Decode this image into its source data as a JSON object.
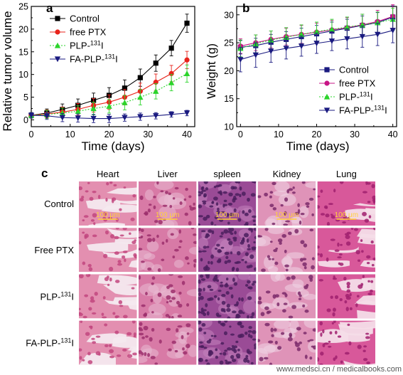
{
  "figure": {
    "watermark": "www.medsci.cn / medicalbooks.com"
  },
  "chart_data": [
    {
      "panel": "a",
      "type": "line",
      "xlabel": "Time (days)",
      "ylabel": "Relative tumor volume",
      "xlim": [
        0,
        42
      ],
      "ylim": [
        -1.5,
        25
      ],
      "xticks": [
        0,
        10,
        20,
        30,
        40
      ],
      "yticks": [
        0,
        5,
        10,
        15,
        20,
        25
      ],
      "legend_position": "top-left",
      "x": [
        0,
        4,
        8,
        12,
        16,
        20,
        24,
        28,
        32,
        36,
        40
      ],
      "series": [
        {
          "name": "Control",
          "color": "#000000",
          "marker": "square",
          "values": [
            1,
            1.5,
            2.3,
            3.2,
            4.3,
            5.4,
            7,
            9.3,
            12.5,
            15.8,
            21.3
          ],
          "errors": [
            0.6,
            0.9,
            1.2,
            1.4,
            1.6,
            1.7,
            1.8,
            1.9,
            1.8,
            1.7,
            2.0
          ]
        },
        {
          "name": "free PTX",
          "color": "#e8231b",
          "marker": "circle",
          "values": [
            1,
            1.3,
            1.7,
            2.3,
            3.2,
            3.9,
            5,
            6.3,
            8.3,
            10.2,
            13.2
          ],
          "errors": [
            0.6,
            0.9,
            1.1,
            1.3,
            1.5,
            1.6,
            1.7,
            1.8,
            1.8,
            1.8,
            1.9
          ]
        },
        {
          "name": "PLP-",
          "name_sup": "131",
          "name_suffix": "I",
          "color": "#2bd42b",
          "marker": "triangle-up",
          "values": [
            1,
            1.2,
            1.5,
            1.9,
            2.5,
            3.0,
            3.8,
            5.0,
            6.3,
            8.2,
            10.2
          ],
          "errors": [
            0.6,
            0.9,
            1.1,
            1.2,
            1.4,
            1.5,
            1.6,
            1.7,
            1.7,
            1.8,
            1.9
          ]
        },
        {
          "name": "FA-PLP-",
          "name_sup": "131",
          "name_suffix": "I",
          "color": "#1a1a80",
          "marker": "triangle-down",
          "values": [
            1,
            0.9,
            0.5,
            0.4,
            0.3,
            0.3,
            0.5,
            0.7,
            0.9,
            1.2,
            1.5
          ],
          "errors": [
            0.6,
            0.8,
            0.9,
            0.9,
            0.9,
            0.9,
            0.8,
            0.8,
            0.7,
            0.6,
            0.6
          ]
        }
      ]
    },
    {
      "panel": "b",
      "type": "line",
      "xlabel": "Time (days)",
      "ylabel": "Weight (g)",
      "xlim": [
        -1,
        41
      ],
      "ylim": [
        10,
        31.5
      ],
      "xticks": [
        0,
        10,
        20,
        30,
        40
      ],
      "yticks": [
        10,
        15,
        20,
        25,
        30
      ],
      "legend_position": "bottom-right",
      "x": [
        0,
        4,
        8,
        12,
        16,
        20,
        24,
        28,
        32,
        36,
        40
      ],
      "series": [
        {
          "name": "Control",
          "color": "#1a1a80",
          "marker": "square",
          "values": [
            24.2,
            24.5,
            25.1,
            25.6,
            26.1,
            26.6,
            27.1,
            27.6,
            28.1,
            28.6,
            29.6
          ],
          "errors": [
            1.2,
            1.3,
            1.4,
            1.4,
            1.5,
            1.5,
            1.6,
            1.6,
            1.7,
            1.8,
            2.0
          ]
        },
        {
          "name": "free PTX",
          "color": "#c71585",
          "marker": "circle",
          "values": [
            24.4,
            25.0,
            25.6,
            26.1,
            26.5,
            26.9,
            27.3,
            27.7,
            28.2,
            28.8,
            29.7
          ],
          "errors": [
            1.3,
            1.4,
            1.5,
            1.5,
            1.6,
            1.6,
            1.7,
            1.8,
            1.9,
            2.0,
            2.1
          ]
        },
        {
          "name": "PLP-",
          "name_sup": "131",
          "name_suffix": "I",
          "color": "#2bd42b",
          "marker": "triangle-up",
          "values": [
            24.0,
            24.8,
            25.5,
            26.0,
            26.5,
            27.0,
            27.4,
            27.8,
            28.2,
            28.6,
            29.2
          ],
          "errors": [
            1.5,
            1.6,
            1.6,
            1.7,
            1.7,
            1.7,
            1.8,
            1.8,
            1.9,
            1.9,
            2.0
          ]
        },
        {
          "name": "FA-PLP-",
          "name_sup": "131",
          "name_suffix": "I",
          "color": "#1a1a80",
          "marker": "triangle-down",
          "values": [
            22.0,
            22.8,
            23.5,
            24.0,
            24.4,
            24.9,
            25.3,
            25.7,
            26.1,
            26.5,
            27.2
          ],
          "errors": [
            2.2,
            2.2,
            2.0,
            1.9,
            1.8,
            1.8,
            1.7,
            1.8,
            1.9,
            2.0,
            2.2
          ]
        }
      ]
    }
  ],
  "histology": {
    "panel": "c",
    "columns": [
      "Heart",
      "Liver",
      "spleen",
      "Kidney",
      "Lung"
    ],
    "rows": [
      {
        "label": "Control"
      },
      {
        "label": "Free PTX"
      },
      {
        "label": "PLP-",
        "label_sup": "131",
        "label_suffix": "I"
      },
      {
        "label": "FA-PLP-",
        "label_sup": "131",
        "label_suffix": "I"
      }
    ],
    "scale_bar": "100 μm",
    "tissue_colors": {
      "Heart": [
        "#e38fb0",
        "#c2477f",
        "#f4e9ef"
      ],
      "Liver": [
        "#d87aa6",
        "#9c2f6c",
        "#e9b9d2"
      ],
      "spleen": [
        "#9a4b96",
        "#4b1f5e",
        "#c583bd"
      ],
      "Kidney": [
        "#df93b8",
        "#7b2a6a",
        "#efd3e3"
      ],
      "Lung": [
        "#d8589a",
        "#a0206e",
        "#f4dde8"
      ]
    }
  }
}
